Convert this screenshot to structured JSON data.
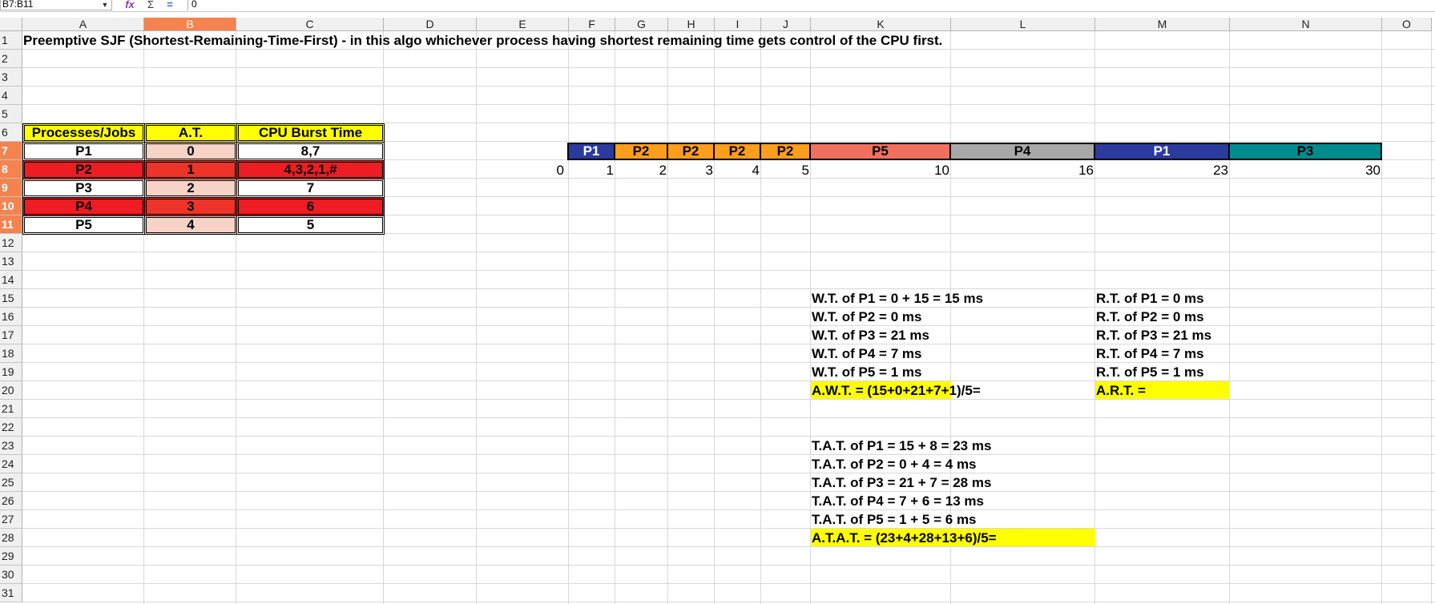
{
  "formula_bar": {
    "name_box": "B7:B11",
    "content": "0"
  },
  "columns": [
    "A",
    "B",
    "C",
    "D",
    "E",
    "F",
    "G",
    "H",
    "I",
    "J",
    "K",
    "L",
    "M",
    "N",
    "O"
  ],
  "rows": [
    "1",
    "2",
    "3",
    "4",
    "5",
    "6",
    "7",
    "8",
    "9",
    "10",
    "11",
    "12",
    "13",
    "14",
    "15",
    "16",
    "17",
    "18",
    "19",
    "20",
    "21",
    "22",
    "23",
    "24",
    "25",
    "26",
    "27",
    "28",
    "29",
    "30",
    "31"
  ],
  "title": "Preemptive SJF (Shortest-Remaining-Time-First)  - in this algo whichever process having shortest remaining time gets control of the CPU first.",
  "table": {
    "headers": [
      "Processes/Jobs",
      "A.T.",
      "CPU Burst Time"
    ],
    "rows": [
      {
        "process": "P1",
        "at": "0",
        "burst": "8,7"
      },
      {
        "process": "P2",
        "at": "1",
        "burst": "4,3,2,1,#"
      },
      {
        "process": "P3",
        "at": "2",
        "burst": "7"
      },
      {
        "process": "P4",
        "at": "3",
        "burst": "6"
      },
      {
        "process": "P5",
        "at": "4",
        "burst": "5"
      }
    ]
  },
  "gantt": {
    "blocks": [
      "P1",
      "P2",
      "P2",
      "P2",
      "P2",
      "P5",
      "P4",
      "P1",
      "P3"
    ],
    "colors": {
      "P1": "#2a3a9e",
      "P2": "#ff9d1c",
      "P5": "#f07060",
      "P4": "#a8a8a8",
      "P3": "#008c8c"
    },
    "ticks": [
      "0",
      "1",
      "2",
      "3",
      "4",
      "5",
      "10",
      "16",
      "23",
      "30"
    ]
  },
  "waiting_times": [
    "W.T. of P1 = 0 + 15 = 15 ms",
    "W.T. of P2 = 0 ms",
    "W.T. of P3 = 21 ms",
    "W.T. of P4 = 7 ms",
    "W.T. of P5 = 1 ms"
  ],
  "awt": "A.W.T. = (15+0+21+7+1)/5=",
  "response_times": [
    "R.T. of P1 = 0 ms",
    "R.T. of P2 = 0 ms",
    "R.T. of P3 = 21 ms",
    "R.T. of P4 = 7 ms",
    "R.T. of P5 = 1 ms"
  ],
  "art": "A.R.T. =",
  "turnaround_times": [
    "T.A.T. of P1 = 15 + 8 = 23 ms",
    "T.A.T. of P2 = 0 + 4 = 4 ms",
    "T.A.T. of P3 = 21 + 7 = 28 ms",
    "T.A.T. of P4 = 7 + 6 = 13 ms",
    "T.A.T. of P5 = 1 + 5 = 6 ms"
  ],
  "atat": "A.T.A.T. = (23+4+28+13+6)/5="
}
